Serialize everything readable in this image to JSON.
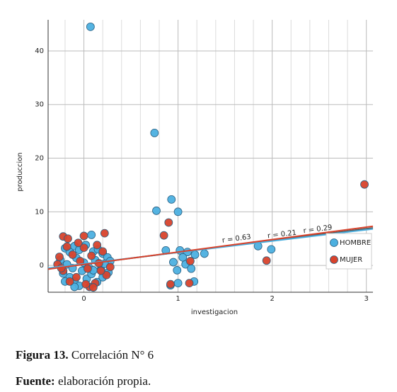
{
  "chart_data": {
    "type": "scatter",
    "x_label": "investigacion",
    "y_label": "produccion",
    "xlim": [
      -0.38,
      3.07
    ],
    "ylim": [
      -5,
      45.8
    ],
    "xticks": [
      0,
      1,
      2,
      3
    ],
    "yticks": [
      0,
      10,
      20,
      30,
      40
    ],
    "xminorticks": [
      -0.2,
      0.2,
      0.4,
      0.6,
      0.8,
      1.2,
      1.4,
      1.6,
      1.8,
      2.2,
      2.4,
      2.6,
      2.8
    ],
    "grid": true,
    "legend": "right",
    "series": [
      {
        "name": "HOMBRE",
        "color": "#4cb0e0",
        "x": [
          0.07,
          0.75,
          0.93,
          0.77,
          1.0,
          0.08,
          0.87,
          1.02,
          1.1,
          1.18,
          1.28,
          1.05,
          0.95,
          1.08,
          1.14,
          0.99,
          1.0,
          1.17,
          0.92,
          1.85,
          1.99,
          -0.2,
          -0.15,
          -0.1,
          -0.05,
          0.02,
          0.1,
          0.15,
          0.2,
          0.25,
          0.28,
          -0.25,
          -0.18,
          -0.12,
          -0.08,
          0.0,
          0.05,
          0.12,
          0.18,
          0.22,
          -0.22,
          -0.15,
          -0.1,
          -0.05,
          0.03,
          0.08,
          0.14,
          0.2,
          -0.2,
          -0.1,
          0.1,
          0.26,
          -0.02
        ],
        "values": [
          44.5,
          24.7,
          12.3,
          10.2,
          10.0,
          5.7,
          2.8,
          2.8,
          2.5,
          2.0,
          2.2,
          1.5,
          0.6,
          0.2,
          -0.6,
          -0.9,
          -3.3,
          -3.0,
          -3.7,
          3.6,
          3.0,
          3.2,
          2.5,
          3.6,
          2.9,
          3.8,
          2.6,
          3.0,
          2.2,
          1.5,
          0.8,
          1.0,
          0.2,
          -0.5,
          1.4,
          0.5,
          -0.3,
          1.0,
          -0.8,
          0.3,
          -1.5,
          -2.2,
          -3.0,
          -3.8,
          -2.5,
          -1.6,
          -3.1,
          -2.2,
          -3.0,
          -4.0,
          -0.9,
          -1.3,
          -1.0
        ]
      },
      {
        "name": "MUJER",
        "color": "#d8432c",
        "x": [
          2.98,
          1.94,
          0.85,
          0.9,
          1.13,
          0.92,
          1.12,
          0.22,
          -0.22,
          -0.17,
          0.0,
          -0.28,
          -0.26,
          -0.22,
          -0.18,
          -0.12,
          -0.08,
          -0.04,
          0.0,
          0.04,
          0.08,
          0.12,
          0.16,
          0.2,
          0.24,
          0.28,
          -0.15,
          0.06,
          -0.06,
          0.14,
          0.02,
          0.18,
          -0.24,
          0.1
        ],
        "values": [
          15.1,
          0.9,
          5.6,
          8.0,
          0.8,
          -3.5,
          -3.3,
          6.0,
          5.4,
          5.0,
          5.5,
          0.2,
          1.6,
          -1.0,
          3.5,
          2.0,
          -2.2,
          0.8,
          3.3,
          -0.6,
          1.8,
          -3.3,
          0.4,
          2.6,
          -1.8,
          -0.3,
          -3.0,
          -4.0,
          4.2,
          3.8,
          -3.5,
          -1.0,
          -0.5,
          -4.1
        ]
      }
    ],
    "fits": [
      {
        "label": "r = 0.29",
        "color": "#555555",
        "x": [
          -0.38,
          3.07
        ],
        "values": [
          -0.6,
          7.0
        ]
      },
      {
        "label": "r = 0.21",
        "color": "#4cb0e0",
        "x": [
          -0.38,
          3.07
        ],
        "values": [
          -0.5,
          6.8
        ]
      },
      {
        "label": "r = 0.63",
        "color": "#d8432c",
        "x": [
          -0.38,
          3.07
        ],
        "values": [
          -0.7,
          7.3
        ]
      }
    ]
  },
  "caption": {
    "label": "Figura 13.",
    "text": "Correlación N° 6"
  },
  "source": {
    "label": "Fuente:",
    "text": "elaboración propia."
  }
}
